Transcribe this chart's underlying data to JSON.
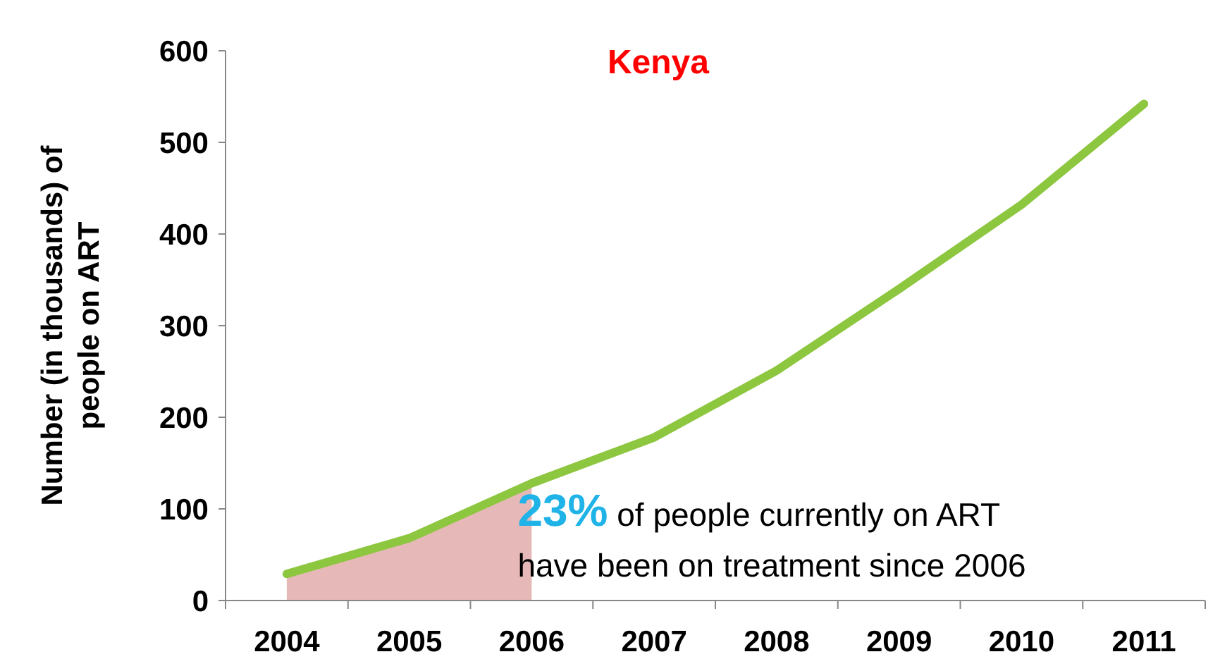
{
  "chart_data": {
    "type": "line",
    "title": "Kenya",
    "ylabel": "Number (in thousands) of\npeople on ART",
    "categories": [
      "2004",
      "2005",
      "2006",
      "2007",
      "2008",
      "2009",
      "2010",
      "2011"
    ],
    "series": [
      {
        "type": "area",
        "color": "#e6b9b8",
        "values": [
          29,
          68,
          128,
          null,
          null,
          null,
          null,
          null
        ]
      },
      {
        "color": "#8dc63f",
        "values": [
          29,
          68,
          128,
          178,
          251,
          340,
          432,
          542
        ]
      }
    ],
    "ylim": [
      0,
      600
    ],
    "yticks": [
      0,
      100,
      200,
      300,
      400,
      500,
      600
    ],
    "grid": false,
    "marker": "none",
    "line_style": "solid",
    "annotations": [
      {
        "text": "23% of people currently on ART\nhave been on treatment since 2006",
        "x": "2006",
        "y": 128
      }
    ]
  }
}
